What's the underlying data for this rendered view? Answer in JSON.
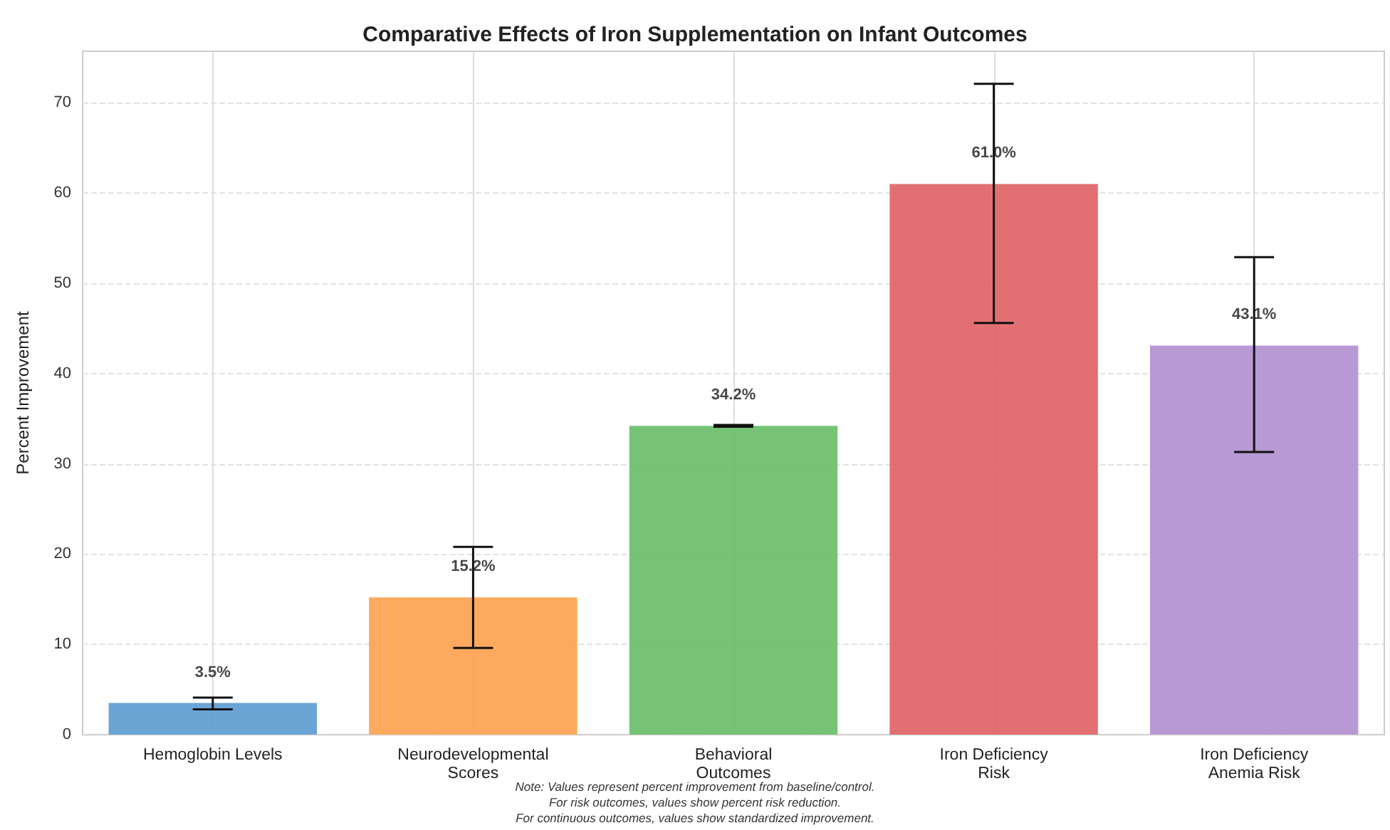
{
  "chart_data": {
    "type": "bar",
    "title": "Comparative Effects of Iron Supplementation on Infant Outcomes",
    "ylabel": "Percent Improvement",
    "categories": [
      "Hemoglobin Levels",
      "Neurodevelopmental\nScores",
      "Behavioral\nOutcomes",
      "Iron Deficiency\nRisk",
      "Iron Deficiency\nAnemia Risk"
    ],
    "values": [
      3.5,
      15.2,
      34.2,
      61.0,
      43.1
    ],
    "colors": [
      "#5b9bd1",
      "#fda14d",
      "#67bc66",
      "#df6163",
      "#b08ecf"
    ],
    "errors": [
      [
        2.8,
        4.1
      ],
      [
        9.6,
        20.8
      ],
      [
        34.1,
        34.3
      ],
      [
        45.6,
        72.1
      ],
      [
        31.3,
        52.9
      ]
    ],
    "value_labels": [
      "3.5%",
      "15.2%",
      "34.2%",
      "61.0%",
      "43.1%"
    ],
    "ylim": [
      0,
      75.7
    ],
    "yticks": [
      0,
      10,
      20,
      30,
      40,
      50,
      60,
      70
    ],
    "grid": true,
    "annotations": [
      "Note: Values represent percent improvement from baseline/control.",
      "For risk outcomes, values show percent risk reduction.",
      "For continuous outcomes, values show standardized improvement."
    ]
  }
}
